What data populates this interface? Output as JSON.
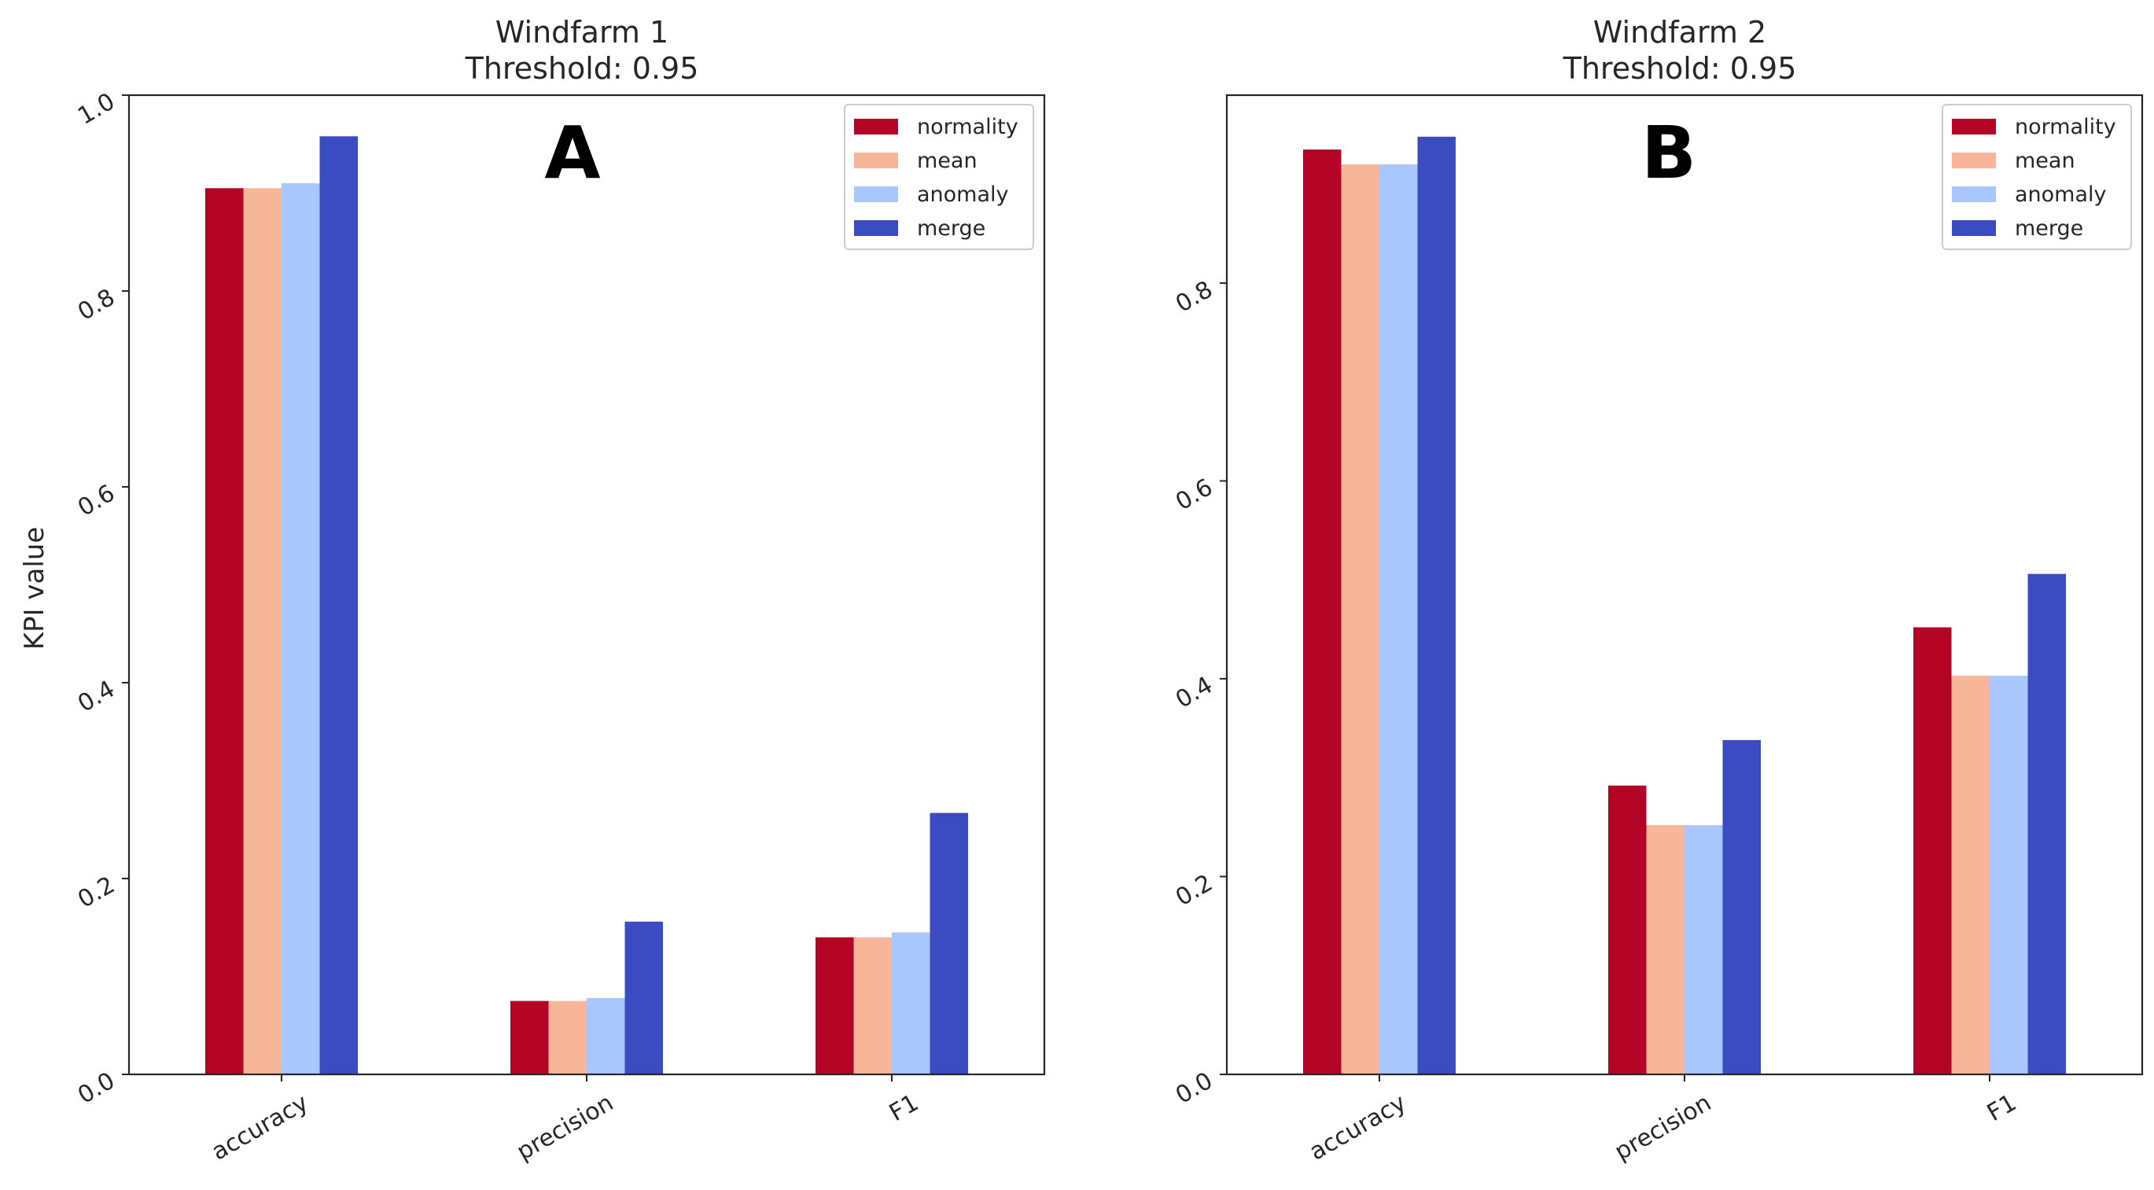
{
  "chart_data": [
    {
      "type": "bar",
      "title": "Windfarm 1",
      "subtitle": "Threshold: 0.95",
      "panel_label": "A",
      "xlabel": "",
      "ylabel": "KPI value",
      "ylim": [
        0,
        1.0
      ],
      "yticks": [
        "0.0",
        "0.2",
        "0.4",
        "0.6",
        "0.8",
        "1.0"
      ],
      "categories": [
        "accuracy",
        "precision",
        "F1"
      ],
      "legend_position": "top-right",
      "series": [
        {
          "name": "normality",
          "color": "#b40426",
          "values": [
            0.905,
            0.075,
            0.14
          ]
        },
        {
          "name": "mean",
          "color": "#f7b599",
          "values": [
            0.905,
            0.075,
            0.14
          ]
        },
        {
          "name": "anomaly",
          "color": "#aac7fd",
          "values": [
            0.91,
            0.078,
            0.145
          ]
        },
        {
          "name": "merge",
          "color": "#3b4cc0",
          "values": [
            0.958,
            0.156,
            0.267
          ]
        }
      ]
    },
    {
      "type": "bar",
      "title": "Windfarm 2",
      "subtitle": "Threshold: 0.95",
      "panel_label": "B",
      "xlabel": "",
      "ylabel": "",
      "ylim": [
        0,
        0.99
      ],
      "yticks": [
        "0.0",
        "0.2",
        "0.4",
        "0.6",
        "0.8"
      ],
      "categories": [
        "accuracy",
        "precision",
        "F1"
      ],
      "legend_position": "top-right",
      "series": [
        {
          "name": "normality",
          "color": "#b40426",
          "values": [
            0.935,
            0.292,
            0.452
          ]
        },
        {
          "name": "mean",
          "color": "#f7b599",
          "values": [
            0.92,
            0.252,
            0.403
          ]
        },
        {
          "name": "anomaly",
          "color": "#aac7fd",
          "values": [
            0.92,
            0.252,
            0.403
          ]
        },
        {
          "name": "merge",
          "color": "#3b4cc0",
          "values": [
            0.948,
            0.338,
            0.506
          ]
        }
      ]
    }
  ]
}
